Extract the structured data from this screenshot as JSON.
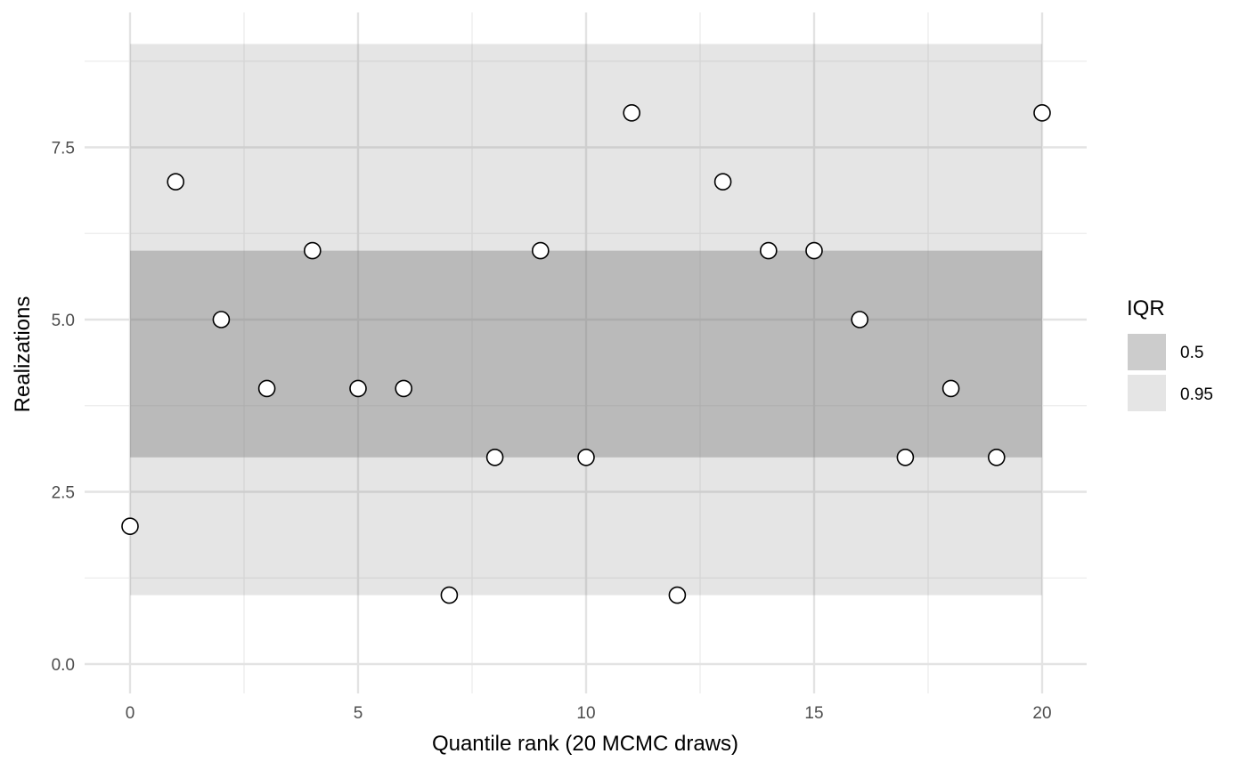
{
  "chart_data": {
    "type": "scatter",
    "title": "",
    "xlabel": "Quantile rank (20 MCMC draws)",
    "ylabel": "Realizations",
    "xlim": [
      -1,
      21
    ],
    "ylim": [
      -0.45,
      9.45
    ],
    "x_ticks": [
      {
        "value": 0,
        "label": "0"
      },
      {
        "value": 5,
        "label": "5"
      },
      {
        "value": 10,
        "label": "10"
      },
      {
        "value": 15,
        "label": "15"
      },
      {
        "value": 20,
        "label": "20"
      }
    ],
    "y_ticks": [
      {
        "value": 0,
        "label": "0.0"
      },
      {
        "value": 2.5,
        "label": "2.5"
      },
      {
        "value": 5,
        "label": "5.0"
      },
      {
        "value": 7.5,
        "label": "7.5"
      }
    ],
    "x_minor": [
      2.5,
      7.5,
      12.5,
      17.5
    ],
    "y_minor": [
      1.25,
      3.75,
      6.25,
      8.75
    ],
    "grid": true,
    "bands": [
      {
        "label": "0.95",
        "x_from": 0,
        "x_to": 20,
        "y_from": 1,
        "y_to": 9,
        "color": "#e5e5e5"
      },
      {
        "label": "0.5",
        "x_from": 0,
        "x_to": 20,
        "y_from": 3,
        "y_to": 6,
        "color": "#b3b3b3"
      }
    ],
    "points": {
      "x": [
        0,
        1,
        2,
        3,
        4,
        5,
        6,
        7,
        8,
        9,
        10,
        11,
        12,
        13,
        14,
        15,
        16,
        17,
        18,
        19,
        20
      ],
      "y": [
        2,
        7,
        5,
        4,
        6,
        4,
        4,
        1,
        3,
        6,
        3,
        8,
        1,
        7,
        6,
        6,
        5,
        3,
        4,
        3,
        8
      ]
    },
    "legend": {
      "title": "IQR",
      "position": "right",
      "entries": [
        {
          "label": "0.5",
          "color": "#cccccc"
        },
        {
          "label": "0.95",
          "color": "#e5e5e5"
        }
      ]
    }
  }
}
